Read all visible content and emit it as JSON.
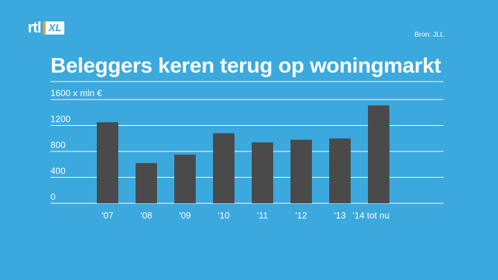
{
  "logo": {
    "text_rtl": "rtl",
    "text_xl": "XL"
  },
  "source": "Bron: JLL",
  "title": "Beleggers keren terug op woningmarkt",
  "chart_data": {
    "type": "bar",
    "title": "Beleggers keren terug op woningmarkt",
    "ylabel": "1600 x mln €",
    "xlabel": "",
    "ylim": [
      0,
      1600
    ],
    "yticks": [
      "1600 x mln €",
      "1200",
      "800",
      "400",
      "0"
    ],
    "ytick_values": [
      1600,
      1200,
      800,
      400,
      0
    ],
    "categories": [
      "'07",
      "'08",
      "'09",
      "'10",
      "'11",
      "'12",
      "'13",
      "'14 tot nu"
    ],
    "values": [
      1250,
      620,
      750,
      1080,
      940,
      980,
      1000,
      1510
    ],
    "grid": true,
    "colors": {
      "bar": "#4a4a4a",
      "grid": "#ffffff",
      "background": "#3ba9dd",
      "text": "#ffffff"
    }
  }
}
